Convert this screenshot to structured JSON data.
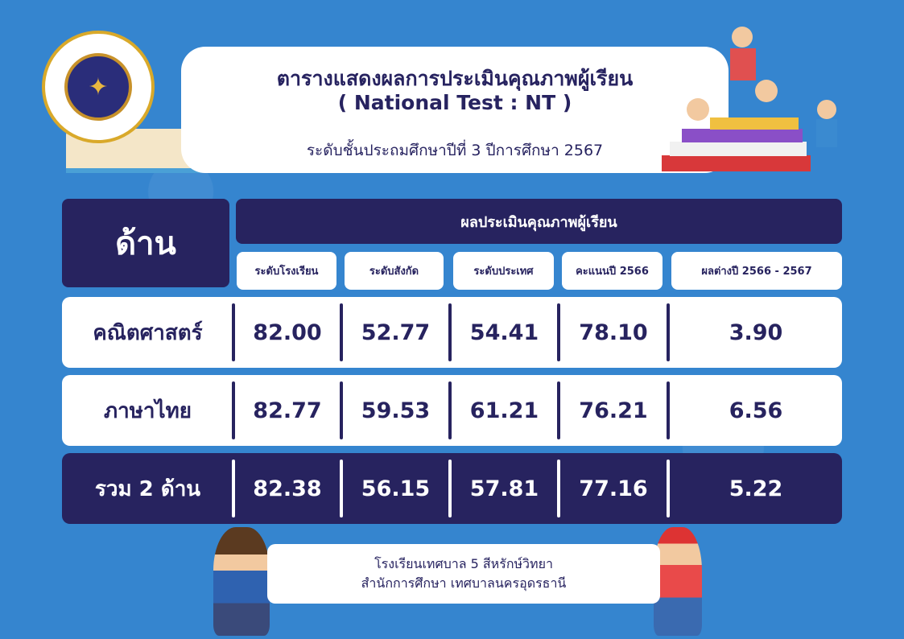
{
  "header": {
    "title": "ตารางแสดงผลการประเมินคุณภาพผู้เรียน",
    "subtitle": "( National Test : NT )",
    "level": "ระดับชั้นประถมศึกษาปีที่ 3 ปีการศึกษา 2567"
  },
  "logo": {
    "text": "โรงเรียนเทศบาล ๕ สีหรักษ์วิทยา เทศบาลนครอุดรธานี"
  },
  "table": {
    "side_header": "ด้าน",
    "group_header": "ผลประเมินคุณภาพผู้เรียน",
    "columns": [
      "ระดับโรงเรียน",
      "ระดับสังกัด",
      "ระดับประเทศ",
      "คะแนนปี 2566",
      "ผลต่างปี 2566 - 2567"
    ],
    "rows": [
      {
        "label": "คณิตศาสตร์",
        "values": [
          "82.00",
          "52.77",
          "54.41",
          "78.10",
          "3.90"
        ]
      },
      {
        "label": "ภาษาไทย",
        "values": [
          "82.77",
          "59.53",
          "61.21",
          "76.21",
          "6.56"
        ]
      },
      {
        "label": "รวม 2 ด้าน",
        "values": [
          "82.38",
          "56.15",
          "57.81",
          "77.16",
          "5.22"
        ]
      }
    ]
  },
  "footer": {
    "line1": "โรงเรียนเทศบาล 5 สีหรักษ์วิทยา",
    "line2": "สำนักการศึกษา เทศบาลนครอุดรธานี"
  },
  "colors": {
    "background": "#3585cf",
    "navy": "#27235f",
    "white": "#ffffff"
  }
}
